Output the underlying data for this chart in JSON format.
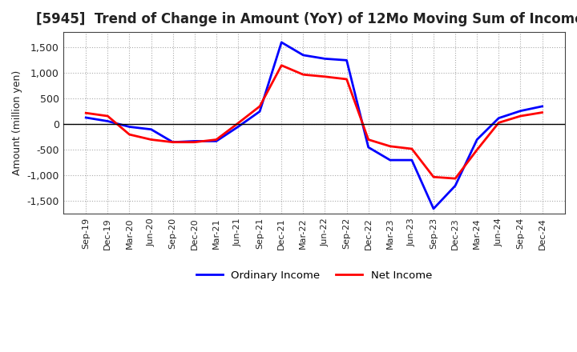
{
  "title": "[5945]  Trend of Change in Amount (YoY) of 12Mo Moving Sum of Incomes",
  "ylabel": "Amount (million yen)",
  "ylim": [
    -1750,
    1800
  ],
  "yticks": [
    -1500,
    -1000,
    -500,
    0,
    500,
    1000,
    1500
  ],
  "legend_labels": [
    "Ordinary Income",
    "Net Income"
  ],
  "line_colors": [
    "blue",
    "red"
  ],
  "x_labels": [
    "Sep-19",
    "Dec-19",
    "Mar-20",
    "Jun-20",
    "Sep-20",
    "Dec-20",
    "Mar-21",
    "Jun-21",
    "Sep-21",
    "Dec-21",
    "Mar-22",
    "Jun-22",
    "Sep-22",
    "Dec-22",
    "Mar-23",
    "Jun-23",
    "Sep-23",
    "Dec-23",
    "Mar-24",
    "Jun-24",
    "Sep-24",
    "Dec-24"
  ],
  "ordinary_income": [
    130,
    60,
    -50,
    -100,
    -350,
    -330,
    -330,
    -50,
    250,
    1600,
    1350,
    1280,
    1250,
    -450,
    -700,
    -700,
    -1650,
    -1200,
    -300,
    120,
    260,
    350
  ],
  "net_income": [
    220,
    160,
    -200,
    -300,
    -350,
    -350,
    -300,
    20,
    350,
    1150,
    970,
    930,
    880,
    -300,
    -430,
    -480,
    -1030,
    -1060,
    -500,
    30,
    160,
    230
  ]
}
